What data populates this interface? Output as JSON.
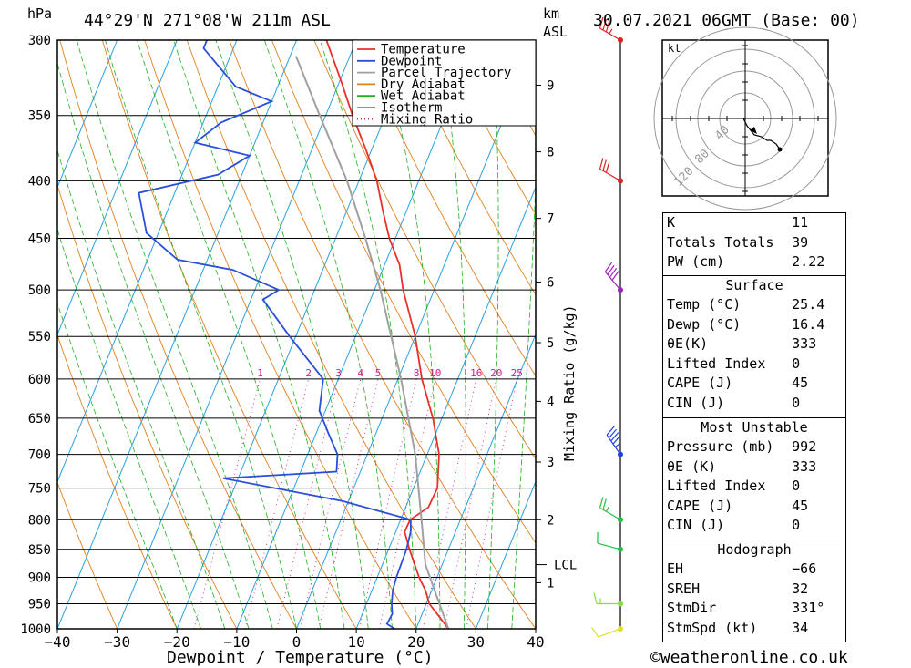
{
  "header": {
    "hpa_label": "hPa",
    "location": "44°29'N  271°08'W  211m  ASL",
    "km_label": "km",
    "asl_label": "ASL",
    "datetime": "30.07.2021  06GMT  (Base: 00)"
  },
  "chart_data": {
    "type": "skew-t",
    "xlabel": "Dewpoint / Temperature (°C)",
    "ylabel_left": "hPa",
    "ylabel_mixing": "Mixing Ratio (g/kg)",
    "x_ticks": [
      "−40",
      "−30",
      "−20",
      "−10",
      "0",
      "10",
      "20",
      "30",
      "40"
    ],
    "x_tick_values": [
      -40,
      -30,
      -20,
      -10,
      0,
      10,
      20,
      30,
      40
    ],
    "xlim": [
      -40,
      40
    ],
    "pressure_levels": [
      300,
      350,
      400,
      450,
      500,
      550,
      600,
      650,
      700,
      750,
      800,
      850,
      900,
      950,
      1000
    ],
    "km_ticks": [
      {
        "km": "1",
        "p": 910
      },
      {
        "km": "2",
        "p": 800
      },
      {
        "km": "3",
        "p": 711
      },
      {
        "km": "4",
        "p": 628
      },
      {
        "km": "5",
        "p": 557
      },
      {
        "km": "6",
        "p": 492
      },
      {
        "km": "7",
        "p": 432
      },
      {
        "km": "8",
        "p": 377
      },
      {
        "km": "9",
        "p": 329
      }
    ],
    "lcl": {
      "label": "LCL",
      "p": 877
    },
    "mixing_ratio_labels": [
      "1",
      "2",
      "3",
      "4",
      "5",
      "8",
      "10",
      "16",
      "20",
      "25"
    ],
    "mixing_ratio_values": [
      1,
      2,
      3,
      4,
      5,
      8,
      10,
      16,
      20,
      25
    ],
    "legend": [
      {
        "name": "Temperature",
        "color": "#e8302a",
        "style": "solid"
      },
      {
        "name": "Dewpoint",
        "color": "#2a4fd8",
        "style": "solid"
      },
      {
        "name": "Parcel Trajectory",
        "color": "#a0a0a0",
        "style": "solid"
      },
      {
        "name": "Dry Adiabat",
        "color": "#e08020",
        "style": "solid"
      },
      {
        "name": "Wet Adiabat",
        "color": "#20b020",
        "style": "solid"
      },
      {
        "name": "Isotherm",
        "color": "#2aa0e0",
        "style": "solid"
      },
      {
        "name": "Mixing Ratio",
        "color": "#d0208c",
        "style": "dotted"
      }
    ],
    "series": [
      {
        "name": "Temperature",
        "points": [
          [
            1000,
            25.4
          ],
          [
            975,
            23
          ],
          [
            950,
            20.5
          ],
          [
            925,
            19
          ],
          [
            900,
            17
          ],
          [
            850,
            13.5
          ],
          [
            820,
            11.5
          ],
          [
            800,
            11.6
          ],
          [
            780,
            13.8
          ],
          [
            750,
            14
          ],
          [
            700,
            12
          ],
          [
            650,
            8.5
          ],
          [
            600,
            4
          ],
          [
            550,
            0
          ],
          [
            500,
            -5.2
          ],
          [
            475,
            -7.5
          ],
          [
            450,
            -11
          ],
          [
            425,
            -14
          ],
          [
            400,
            -17
          ],
          [
            375,
            -21
          ],
          [
            350,
            -25.5
          ],
          [
            325,
            -30
          ],
          [
            300,
            -35
          ]
        ]
      },
      {
        "name": "Dewpoint",
        "points": [
          [
            1000,
            16.4
          ],
          [
            990,
            14.8
          ],
          [
            970,
            15
          ],
          [
            950,
            14.2
          ],
          [
            925,
            13.5
          ],
          [
            900,
            13.2
          ],
          [
            850,
            13
          ],
          [
            820,
            12.5
          ],
          [
            800,
            11.7
          ],
          [
            770,
            -1
          ],
          [
            735,
            -22.5
          ],
          [
            725,
            -4
          ],
          [
            700,
            -5
          ],
          [
            670,
            -8
          ],
          [
            640,
            -11
          ],
          [
            600,
            -12.5
          ],
          [
            550,
            -21
          ],
          [
            510,
            -28
          ],
          [
            500,
            -26
          ],
          [
            480,
            -35
          ],
          [
            470,
            -45
          ],
          [
            445,
            -52
          ],
          [
            410,
            -56
          ],
          [
            395,
            -44
          ],
          [
            380,
            -40
          ],
          [
            370,
            -50
          ],
          [
            355,
            -47
          ],
          [
            340,
            -40
          ],
          [
            330,
            -47
          ],
          [
            305,
            -55
          ],
          [
            300,
            -55
          ]
        ]
      },
      {
        "name": "Parcel Trajectory",
        "points": [
          [
            1000,
            25.4
          ],
          [
            877,
            17.2
          ],
          [
            800,
            13.5
          ],
          [
            700,
            8
          ],
          [
            600,
            0.5
          ],
          [
            500,
            -9
          ],
          [
            450,
            -15
          ],
          [
            400,
            -22
          ],
          [
            350,
            -31
          ],
          [
            310,
            -39
          ]
        ]
      }
    ],
    "wind_barbs": [
      {
        "p": 1000,
        "dir": 250,
        "kt": 10
      },
      {
        "p": 950,
        "dir": 270,
        "kt": 5
      },
      {
        "p": 850,
        "dir": 285,
        "kt": 10
      },
      {
        "p": 800,
        "dir": 300,
        "kt": 15
      },
      {
        "p": 700,
        "dir": 325,
        "kt": 35
      },
      {
        "p": 500,
        "dir": 320,
        "kt": 40
      },
      {
        "p": 400,
        "dir": 300,
        "kt": 30
      },
      {
        "p": 300,
        "dir": 300,
        "kt": 25
      }
    ],
    "hodograph": {
      "unit_label": "kt",
      "ring_labels": [
        "40",
        "80",
        "120"
      ],
      "points": [
        [
          -1,
          0
        ],
        [
          1,
          -4
        ],
        [
          5,
          -9
        ],
        [
          9,
          -10
        ],
        [
          12,
          -12
        ],
        [
          14,
          -12
        ],
        [
          17,
          -14
        ],
        [
          19,
          -17
        ]
      ]
    }
  },
  "indices": {
    "general": [
      {
        "label": "K",
        "value": "11"
      },
      {
        "label": "Totals Totals",
        "value": "39"
      },
      {
        "label": "PW (cm)",
        "value": "2.22"
      }
    ],
    "surface": {
      "title": "Surface",
      "rows": [
        {
          "label": "Temp (°C)",
          "value": "25.4"
        },
        {
          "label": "Dewp (°C)",
          "value": "16.4"
        },
        {
          "label": "θE(K)",
          "value": "333"
        },
        {
          "label": "Lifted Index",
          "value": "0"
        },
        {
          "label": "CAPE (J)",
          "value": "45"
        },
        {
          "label": "CIN (J)",
          "value": "0"
        }
      ]
    },
    "most_unstable": {
      "title": "Most Unstable",
      "rows": [
        {
          "label": "Pressure (mb)",
          "value": "992"
        },
        {
          "label": "θE (K)",
          "value": "333"
        },
        {
          "label": "Lifted Index",
          "value": "0"
        },
        {
          "label": "CAPE (J)",
          "value": "45"
        },
        {
          "label": "CIN (J)",
          "value": "0"
        }
      ]
    },
    "hodograph": {
      "title": "Hodograph",
      "rows": [
        {
          "label": "EH",
          "value": "−66"
        },
        {
          "label": "SREH",
          "value": "32"
        },
        {
          "label": "StmDir",
          "value": "331°"
        },
        {
          "label": "StmSpd (kt)",
          "value": "34"
        }
      ]
    }
  },
  "footer": {
    "credit": "©weatheronline.co.uk"
  }
}
